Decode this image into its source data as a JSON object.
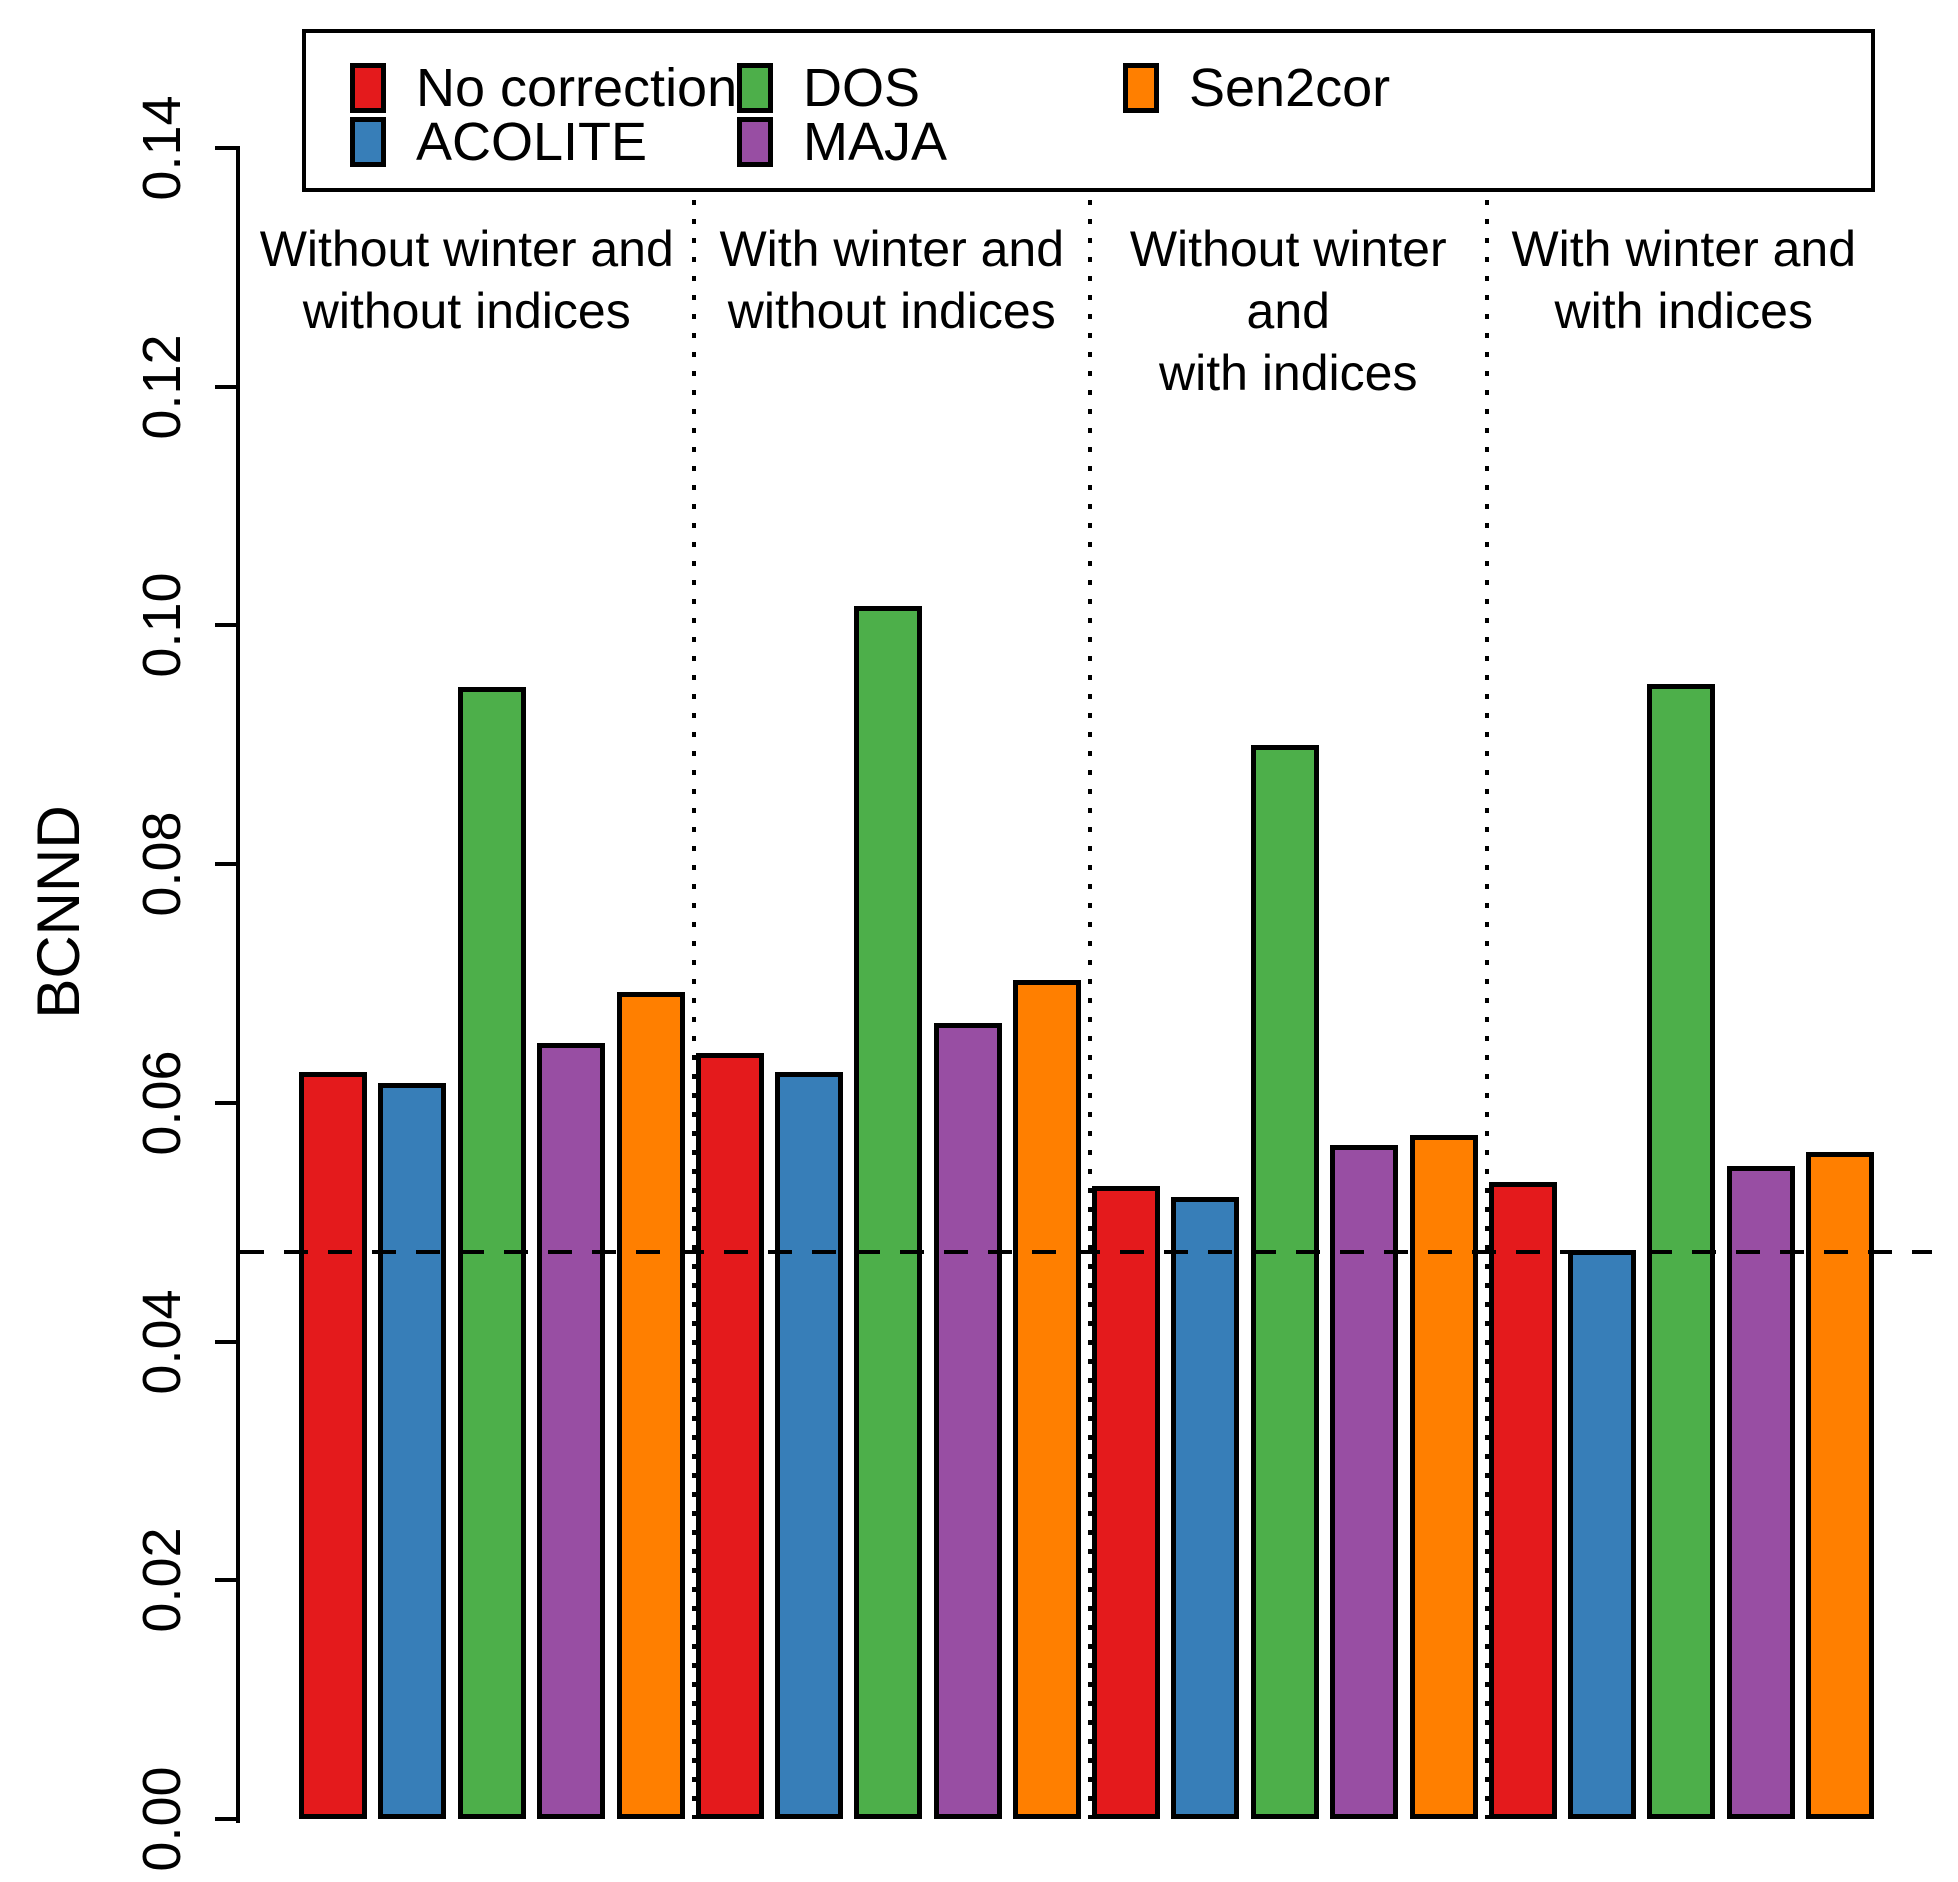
{
  "chart_data": {
    "type": "bar",
    "title": "",
    "xlabel": "",
    "ylabel": "BCNND",
    "ylim": [
      0,
      0.14
    ],
    "ytick_labels": [
      "0.00",
      "0.02",
      "0.04",
      "0.06",
      "0.08",
      "0.10",
      "0.12",
      "0.14"
    ],
    "grid": false,
    "legend_position": "top",
    "group_labels": [
      [
        "Without winter and",
        "without indices"
      ],
      [
        "With winter and",
        "without indices"
      ],
      [
        "Without winter and",
        "with indices"
      ],
      [
        "With winter and",
        "with indices"
      ]
    ],
    "series": [
      {
        "name": "No correction",
        "color": "#E41A1C",
        "values": [
          0.0626,
          0.0642,
          0.053,
          0.0534
        ]
      },
      {
        "name": "ACOLITE",
        "color": "#377EB8",
        "values": [
          0.0617,
          0.0626,
          0.0521,
          0.0477
        ]
      },
      {
        "name": "DOS",
        "color": "#4DAF4A",
        "values": [
          0.0948,
          0.1016,
          0.09,
          0.0951
        ]
      },
      {
        "name": "MAJA",
        "color": "#984EA3",
        "values": [
          0.065,
          0.0667,
          0.0565,
          0.0547
        ]
      },
      {
        "name": "Sen2cor",
        "color": "#FF7F00",
        "values": [
          0.0693,
          0.0703,
          0.0573,
          0.0559
        ]
      }
    ],
    "reference_line": {
      "value": 0.0477,
      "style": "dashed",
      "color": "#000000"
    }
  }
}
